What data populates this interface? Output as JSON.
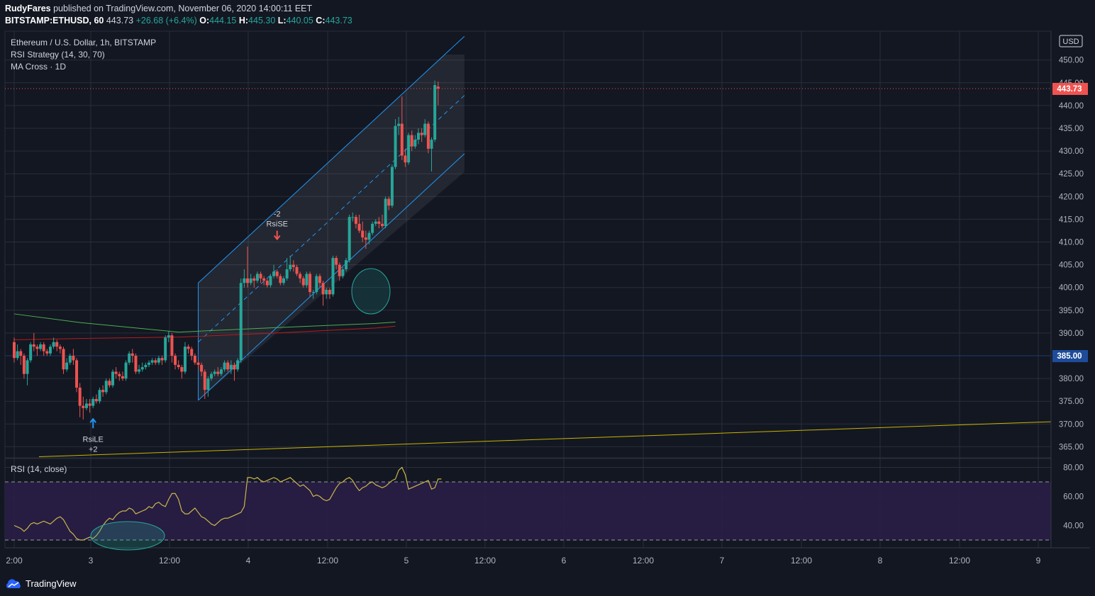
{
  "header": {
    "author": "RudyFares",
    "published_text": "published on TradingView.com, November 06, 2020 14:00:11 EET",
    "symbol": "BITSTAMP:ETHUSD, 60",
    "last": "443.73",
    "change": "+26.68 (+6.4%)",
    "o_label": "O:",
    "o_value": "444.15",
    "h_label": "H:",
    "h_value": "445.30",
    "l_label": "L:",
    "l_value": "440.05",
    "c_label": "C:",
    "c_value": "443.73"
  },
  "legend": {
    "title": "Ethereum / U.S. Dollar, 1h, BITSTAMP",
    "strategy": "RSI Strategy (14, 30, 70)",
    "ma": "MA Cross · 1D",
    "rsi": "RSI (14, close)"
  },
  "price_axis": {
    "currency": "USD",
    "current_price_label": "443.73",
    "line_price_label": "385.00",
    "ticks": [
      "450.00",
      "445.00",
      "440.00",
      "435.00",
      "430.00",
      "425.00",
      "420.00",
      "415.00",
      "410.00",
      "405.00",
      "400.00",
      "395.00",
      "390.00",
      "385.00",
      "380.00",
      "375.00",
      "370.00",
      "365.00"
    ]
  },
  "rsi_axis": {
    "ticks": [
      "80.00",
      "60.00",
      "40.00"
    ]
  },
  "time_axis": {
    "ticks": [
      {
        "label": "2:00",
        "x": 20
      },
      {
        "label": "3",
        "x": 128
      },
      {
        "label": "12:00",
        "x": 239
      },
      {
        "label": "4",
        "x": 350
      },
      {
        "label": "12:00",
        "x": 462
      },
      {
        "label": "5",
        "x": 573
      },
      {
        "label": "12:00",
        "x": 684
      },
      {
        "label": "6",
        "x": 795
      },
      {
        "label": "12:00",
        "x": 907
      },
      {
        "label": "7",
        "x": 1018
      },
      {
        "label": "12:00",
        "x": 1130
      },
      {
        "label": "8",
        "x": 1241
      },
      {
        "label": "12:00",
        "x": 1353
      },
      {
        "label": "9",
        "x": 1464
      }
    ]
  },
  "annotations": {
    "short_qty": "-2",
    "short_label": "RsiSE",
    "long_label": "RsiLE",
    "long_qty": "+2"
  },
  "footer": {
    "brand": "TradingView"
  },
  "colors": {
    "up": "#26a69a",
    "down": "#ef5350",
    "channel": "#2196f3",
    "ma_fast": "#4caf50",
    "ma_slow": "#b71c1c",
    "trend": "#c9b400",
    "rsi": "#c9b84c"
  },
  "chart_data": [
    {
      "type": "candlestick",
      "title": "Ethereum / U.S. Dollar, 1h, BITSTAMP",
      "ylim": [
        362,
        453
      ],
      "hours_from_start": "x",
      "candles": [
        [
          0,
          388.0,
          384.5,
          389.0,
          383.5
        ],
        [
          1,
          384.5,
          386.0,
          387.5,
          384.0
        ],
        [
          2,
          386.0,
          385.0,
          386.5,
          383.0
        ],
        [
          3,
          385.0,
          381.0,
          385.5,
          380.0
        ],
        [
          4,
          381.0,
          384.0,
          384.5,
          378.5
        ],
        [
          5,
          384.0,
          387.5,
          388.0,
          383.5
        ],
        [
          6,
          387.5,
          387.0,
          390.0,
          386.0
        ],
        [
          7,
          387.0,
          386.5,
          387.5,
          385.0
        ],
        [
          8,
          386.5,
          387.5,
          388.0,
          386.0
        ],
        [
          9,
          387.5,
          386.0,
          388.0,
          385.0
        ],
        [
          10,
          386.0,
          385.5,
          386.5,
          385.0
        ],
        [
          11,
          385.5,
          387.0,
          387.5,
          385.0
        ],
        [
          12,
          387.0,
          388.0,
          389.0,
          386.5
        ],
        [
          13,
          388.0,
          387.0,
          388.5,
          386.0
        ],
        [
          14,
          387.0,
          386.5,
          387.5,
          385.5
        ],
        [
          15,
          386.5,
          382.0,
          387.0,
          381.0
        ],
        [
          16,
          382.0,
          383.5,
          384.5,
          381.5
        ],
        [
          17,
          383.5,
          385.0,
          385.5,
          383.0
        ],
        [
          18,
          385.0,
          384.0,
          386.5,
          383.0
        ],
        [
          19,
          384.0,
          378.0,
          384.5,
          377.0
        ],
        [
          20,
          378.0,
          374.0,
          379.0,
          371.5
        ],
        [
          21,
          374.0,
          373.5,
          376.0,
          371.0
        ],
        [
          22,
          373.5,
          374.5,
          375.5,
          373.0
        ],
        [
          23,
          374.5,
          374.0,
          375.5,
          372.5
        ],
        [
          24,
          374.0,
          375.5,
          376.0,
          373.5
        ],
        [
          25,
          375.5,
          375.0,
          376.5,
          374.5
        ],
        [
          26,
          375.0,
          377.5,
          378.0,
          374.5
        ],
        [
          27,
          377.5,
          377.0,
          378.5,
          376.0
        ],
        [
          28,
          377.0,
          379.5,
          380.0,
          376.5
        ],
        [
          29,
          379.5,
          378.5,
          380.0,
          378.0
        ],
        [
          30,
          378.5,
          381.5,
          382.0,
          378.0
        ],
        [
          31,
          381.5,
          381.0,
          382.5,
          380.0
        ],
        [
          32,
          381.0,
          380.5,
          381.5,
          379.5
        ],
        [
          33,
          380.5,
          380.0,
          381.5,
          379.5
        ],
        [
          34,
          380.0,
          383.5,
          384.0,
          379.5
        ],
        [
          35,
          383.5,
          385.5,
          386.0,
          383.0
        ],
        [
          36,
          385.5,
          385.0,
          386.5,
          383.5
        ],
        [
          37,
          385.0,
          381.5,
          385.5,
          381.0
        ],
        [
          38,
          381.5,
          382.0,
          383.0,
          381.0
        ],
        [
          39,
          382.0,
          382.5,
          383.5,
          381.5
        ],
        [
          40,
          382.5,
          383.0,
          383.5,
          382.0
        ],
        [
          41,
          383.0,
          383.5,
          384.0,
          382.5
        ],
        [
          42,
          383.5,
          384.0,
          384.5,
          383.0
        ],
        [
          43,
          384.0,
          383.5,
          384.5,
          383.0
        ],
        [
          44,
          383.5,
          384.5,
          385.0,
          383.0
        ],
        [
          45,
          384.5,
          384.0,
          385.0,
          383.0
        ],
        [
          46,
          384.0,
          389.0,
          389.5,
          383.5
        ],
        [
          47,
          389.0,
          389.5,
          390.5,
          388.0
        ],
        [
          48,
          389.5,
          385.0,
          390.0,
          383.5
        ],
        [
          49,
          385.0,
          383.0,
          385.5,
          382.0
        ],
        [
          50,
          383.0,
          382.5,
          384.0,
          382.0
        ],
        [
          51,
          382.5,
          381.5,
          383.0,
          380.0
        ],
        [
          52,
          381.5,
          387.0,
          388.0,
          381.0
        ],
        [
          53,
          387.0,
          386.5,
          387.5,
          385.5
        ],
        [
          54,
          386.5,
          385.0,
          387.0,
          384.0
        ],
        [
          55,
          385.0,
          383.5,
          385.5,
          383.0
        ],
        [
          56,
          383.5,
          383.0,
          384.0,
          382.0
        ],
        [
          57,
          383.0,
          381.5,
          383.5,
          380.5
        ],
        [
          58,
          381.5,
          377.5,
          382.0,
          375.5
        ],
        [
          59,
          377.5,
          380.0,
          380.5,
          376.0
        ],
        [
          60,
          380.0,
          381.0,
          381.5,
          379.5
        ],
        [
          61,
          381.0,
          381.5,
          382.0,
          380.5
        ],
        [
          62,
          381.5,
          381.0,
          382.5,
          380.5
        ],
        [
          63,
          381.0,
          382.0,
          382.5,
          380.5
        ],
        [
          64,
          382.0,
          383.5,
          384.0,
          381.5
        ],
        [
          65,
          383.5,
          382.0,
          384.0,
          381.5
        ],
        [
          66,
          382.0,
          383.0,
          384.0,
          381.0
        ],
        [
          67,
          383.0,
          382.0,
          383.5,
          379.5
        ],
        [
          68,
          382.0,
          384.0,
          384.5,
          381.5
        ],
        [
          69,
          384.0,
          401.0,
          402.0,
          383.5
        ],
        [
          70,
          401.0,
          402.0,
          404.0,
          400.0
        ],
        [
          71,
          402.0,
          401.0,
          409.0,
          400.0
        ],
        [
          72,
          401.0,
          402.0,
          403.0,
          400.5
        ],
        [
          73,
          402.0,
          401.5,
          402.5,
          400.0
        ],
        [
          74,
          401.5,
          403.0,
          403.5,
          401.0
        ],
        [
          75,
          403.0,
          402.0,
          403.5,
          401.0
        ],
        [
          76,
          402.0,
          401.5,
          402.5,
          400.5
        ],
        [
          77,
          401.5,
          400.5,
          402.0,
          400.0
        ],
        [
          78,
          400.5,
          402.5,
          403.0,
          400.0
        ],
        [
          79,
          402.5,
          403.5,
          405.0,
          402.0
        ],
        [
          80,
          403.5,
          402.5,
          404.0,
          402.0
        ],
        [
          81,
          402.5,
          401.0,
          403.0,
          400.5
        ],
        [
          82,
          401.0,
          402.0,
          402.5,
          400.5
        ],
        [
          83,
          402.0,
          404.0,
          406.5,
          401.5
        ],
        [
          84,
          404.0,
          405.0,
          407.0,
          403.5
        ],
        [
          85,
          405.0,
          404.5,
          406.0,
          403.5
        ],
        [
          86,
          404.5,
          403.0,
          405.0,
          402.5
        ],
        [
          87,
          403.0,
          402.0,
          403.5,
          401.0
        ],
        [
          88,
          402.0,
          400.5,
          402.5,
          400.0
        ],
        [
          89,
          400.5,
          403.0,
          403.5,
          400.0
        ],
        [
          90,
          403.0,
          399.0,
          403.5,
          398.0
        ],
        [
          91,
          399.0,
          399.0,
          399.5,
          397.5
        ],
        [
          92,
          399.0,
          402.5,
          403.0,
          398.5
        ],
        [
          93,
          402.5,
          401.0,
          403.0,
          400.0
        ],
        [
          94,
          401.0,
          398.5,
          401.5,
          396.0
        ],
        [
          95,
          398.5,
          399.5,
          400.0,
          397.5
        ],
        [
          96,
          399.5,
          398.5,
          400.0,
          397.5
        ],
        [
          97,
          398.5,
          406.5,
          407.0,
          398.0
        ],
        [
          98,
          406.5,
          405.0,
          407.0,
          404.0
        ],
        [
          99,
          405.0,
          402.5,
          405.5,
          401.5
        ],
        [
          100,
          402.5,
          404.0,
          404.5,
          402.0
        ],
        [
          101,
          404.0,
          406.0,
          406.5,
          403.5
        ],
        [
          102,
          406.0,
          415.5,
          416.0,
          405.5
        ],
        [
          103,
          415.5,
          415.5,
          416.5,
          414.5
        ],
        [
          104,
          415.5,
          414.0,
          416.0,
          413.0
        ],
        [
          105,
          414.0,
          412.5,
          416.0,
          412.0
        ],
        [
          106,
          412.5,
          411.0,
          414.5,
          410.0
        ],
        [
          107,
          411.0,
          410.5,
          412.5,
          408.5
        ],
        [
          108,
          410.5,
          412.0,
          412.5,
          409.5
        ],
        [
          109,
          412.0,
          414.0,
          414.5,
          411.5
        ],
        [
          110,
          414.0,
          414.5,
          415.0,
          413.5
        ],
        [
          111,
          414.5,
          414.0,
          415.5,
          413.0
        ],
        [
          112,
          414.0,
          413.5,
          416.0,
          413.0
        ],
        [
          113,
          413.5,
          419.5,
          420.0,
          413.0
        ],
        [
          114,
          419.5,
          418.0,
          420.0,
          417.0
        ],
        [
          115,
          418.0,
          426.5,
          427.0,
          417.5
        ],
        [
          116,
          426.5,
          435.5,
          437.0,
          426.0
        ],
        [
          117,
          435.5,
          436.0,
          437.5,
          433.5
        ],
        [
          118,
          436.0,
          429.0,
          442.0,
          428.0
        ],
        [
          119,
          429.0,
          427.5,
          430.5,
          426.5
        ],
        [
          120,
          427.5,
          433.5,
          434.0,
          427.0
        ],
        [
          121,
          433.5,
          431.0,
          434.5,
          430.0
        ],
        [
          122,
          431.0,
          432.5,
          433.5,
          430.5
        ],
        [
          123,
          432.5,
          434.0,
          435.0,
          431.5
        ],
        [
          124,
          434.0,
          433.5,
          435.0,
          432.0
        ],
        [
          125,
          433.5,
          436.0,
          437.0,
          433.0
        ],
        [
          126,
          436.0,
          430.5,
          436.5,
          429.5
        ],
        [
          127,
          430.5,
          432.5,
          433.0,
          425.5
        ],
        [
          128,
          432.5,
          444.5,
          445.5,
          432.0
        ],
        [
          129,
          444.15,
          443.73,
          445.3,
          440.05
        ]
      ],
      "current_price": 443.73,
      "horizontal_line": 385.0,
      "ma_cross": {
        "fast": [
          [
            0,
            394.2
          ],
          [
            20,
            392.3
          ],
          [
            50,
            390.2
          ],
          [
            80,
            391.2
          ],
          [
            110,
            392.1
          ],
          [
            116,
            392.4
          ]
        ],
        "slow": [
          [
            0,
            388.5
          ],
          [
            20,
            388.8
          ],
          [
            50,
            389.1
          ],
          [
            80,
            390.0
          ],
          [
            110,
            391.1
          ],
          [
            116,
            391.5
          ]
        ]
      },
      "trend_line": [
        [
          5,
          362.8
        ],
        [
          220,
          370.5
        ]
      ],
      "channel": {
        "start_x": 56,
        "end_x": 131,
        "upper": [
          401.0,
          451.2
        ],
        "middle": [
          388.0,
          438.2
        ],
        "lower": [
          375.2,
          425.4
        ],
        "box_end_x": 137
      },
      "signals": [
        {
          "label": "RsiSE",
          "qty": "-2",
          "x": 80,
          "price": 407.5,
          "dir": "short"
        },
        {
          "label": "RsiLE",
          "qty": "+2",
          "x": 24,
          "price": 372.5,
          "dir": "long"
        }
      ]
    },
    {
      "type": "line",
      "title": "RSI (14, close)",
      "ylim": [
        28,
        84
      ],
      "levels": [
        70,
        30
      ],
      "values": [
        40,
        39,
        38,
        36,
        38,
        41,
        42,
        41,
        42,
        43,
        42,
        41,
        43,
        45,
        46,
        44,
        40,
        36,
        34,
        31,
        30,
        30,
        31,
        32,
        31,
        33,
        36,
        40,
        43,
        45,
        44,
        47,
        49,
        50,
        50,
        52,
        51,
        48,
        49,
        50,
        51,
        53,
        52,
        55,
        56,
        54,
        53,
        58,
        62,
        62,
        58,
        50,
        48,
        48,
        50,
        52,
        49,
        46,
        45,
        43,
        41,
        40,
        42,
        44,
        45,
        45,
        46,
        47,
        48,
        49,
        53,
        73,
        73,
        72,
        73,
        71,
        70,
        71,
        72,
        73,
        72,
        70,
        71,
        72,
        73,
        71,
        69,
        67,
        68,
        66,
        64,
        60,
        61,
        60,
        58,
        57,
        58,
        62,
        66,
        69,
        70,
        72,
        73,
        71,
        67,
        64,
        66,
        67,
        69,
        70,
        68,
        67,
        66,
        67,
        69,
        71,
        72,
        78,
        80,
        75,
        65,
        66,
        67,
        68,
        69,
        70,
        71,
        65,
        66,
        72,
        72
      ]
    }
  ]
}
